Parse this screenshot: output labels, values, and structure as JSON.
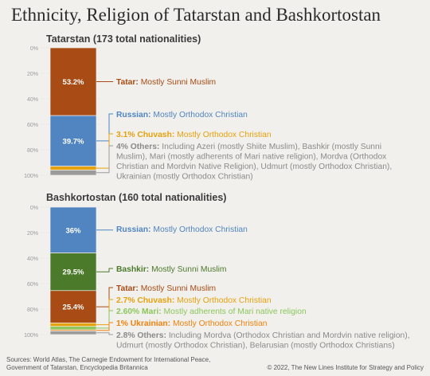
{
  "title": "Ethnicity, Religion of Tatarstan and Bashkortostan",
  "sources": [
    "Sources: World Atlas, The Carnegie Endowment for International Peace,",
    "Government of Tatarstan, Encyclopedia Britannica"
  ],
  "copyright": "© 2022, The New Lines Institute for Strategy and Policy",
  "chart_data": [
    {
      "type": "bar",
      "stacked": true,
      "title": "Tatarstan (173 total nationalities)",
      "y_ticks": [
        "0%",
        "20%",
        "40%",
        "60%",
        "80%",
        "100%"
      ],
      "ylim": [
        0,
        100
      ],
      "segments": [
        {
          "name": "Tatar",
          "value": 53.2,
          "bar_label": "53.2%",
          "color": "#a84b14",
          "label_lines": [
            [
              {
                "t": "Tatar:",
                "b": true
              },
              {
                "t": " Mostly Sunni Muslim"
              }
            ]
          ]
        },
        {
          "name": "Russian",
          "value": 39.7,
          "bar_label": "39.7%",
          "color": "#5085c1",
          "label_lines": [
            [
              {
                "t": "Russian:",
                "b": true
              },
              {
                "t": " Mostly Orthodox Christian"
              }
            ]
          ]
        },
        {
          "name": "Chuvash",
          "value": 3.1,
          "bar_label": "",
          "color": "#e6a10e",
          "label_lines": [
            [
              {
                "t": "3.1% Chuvash:",
                "b": true
              },
              {
                "t": " Mostly Orthodox Christian"
              }
            ]
          ]
        },
        {
          "name": "Others",
          "value": 4,
          "bar_label": "",
          "color": "#9b9b9b",
          "label_lines": [
            [
              {
                "t": "4% Others:",
                "b": true
              },
              {
                "t": " Including Azeri (mostly Shiite Muslim), Bashkir (mostly Sunni"
              }
            ],
            [
              {
                "t": "Muslim), Mari (mostly adherents of Mari native religion), Mordva (Orthodox"
              }
            ],
            [
              {
                "t": "Christian and Mordvin Native Religion), Udmurt (mostly Orthodox Christian),"
              }
            ],
            [
              {
                "t": "Ukrainian (mostly Orthodox Christian)"
              }
            ]
          ]
        }
      ]
    },
    {
      "type": "bar",
      "stacked": true,
      "title": "Bashkortostan (160 total nationalities)",
      "y_ticks": [
        "0%",
        "20%",
        "40%",
        "60%",
        "80%",
        "100%"
      ],
      "ylim": [
        0,
        100
      ],
      "segments": [
        {
          "name": "Russian",
          "value": 36,
          "bar_label": "36%",
          "color": "#5085c1",
          "label_lines": [
            [
              {
                "t": "Russian:",
                "b": true
              },
              {
                "t": " Mostly Orthodox Christian"
              }
            ]
          ]
        },
        {
          "name": "Bashkir",
          "value": 29.5,
          "bar_label": "29.5%",
          "color": "#4c7a2b",
          "label_lines": [
            [
              {
                "t": "Bashkir:",
                "b": true
              },
              {
                "t": " Mostly Sunni Muslim"
              }
            ]
          ]
        },
        {
          "name": "Tatar",
          "value": 25.4,
          "bar_label": "25.4%",
          "color": "#a84b14",
          "label_lines": [
            [
              {
                "t": "Tatar:",
                "b": true
              },
              {
                "t": " Mostly Sunni Muslim"
              }
            ]
          ]
        },
        {
          "name": "Chuvash",
          "value": 2.7,
          "bar_label": "",
          "color": "#e6a10e",
          "label_lines": [
            [
              {
                "t": "2.7% Chuvash:",
                "b": true
              },
              {
                "t": " Mostly Orthodox Christian"
              }
            ]
          ]
        },
        {
          "name": "Mari",
          "value": 2.6,
          "bar_label": "",
          "color": "#8cc65c",
          "label_lines": [
            [
              {
                "t": "2.60% Mari:",
                "b": true
              },
              {
                "t": " Mostly adherents of Mari native religion"
              }
            ]
          ]
        },
        {
          "name": "Ukrainian",
          "value": 1,
          "bar_label": "",
          "color": "#f0820f",
          "label_lines": [
            [
              {
                "t": "1% Ukrainian:",
                "b": true
              },
              {
                "t": " Mostly Orthodox Christian"
              }
            ]
          ]
        },
        {
          "name": "Others",
          "value": 2.8,
          "bar_label": "",
          "color": "#9b9b9b",
          "label_lines": [
            [
              {
                "t": "2.8% Others:",
                "b": true
              },
              {
                "t": " Including Mordva (Orthodox Christian and Mordvin native religion),"
              }
            ],
            [
              {
                "t": "Udmurt (mostly Orthodox Christian), Belarusian (mostly Orthodox Christians)"
              }
            ]
          ]
        }
      ]
    }
  ]
}
